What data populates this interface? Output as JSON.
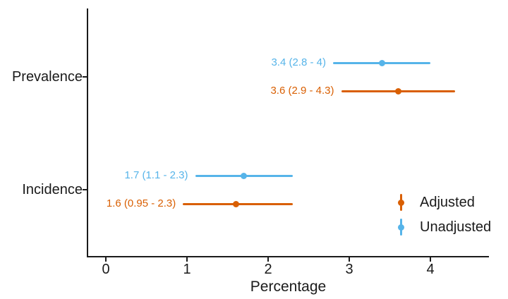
{
  "chart_data": {
    "type": "pointrange",
    "orientation": "horizontal",
    "title": "",
    "xlabel": "Percentage",
    "ylabel": "",
    "xlim": [
      -0.23,
      4.72
    ],
    "x_ticks": [
      "0",
      "1",
      "2",
      "3",
      "4"
    ],
    "grid": "off",
    "axis_color": "#1a1a1a",
    "categories": [
      "Prevalence",
      "Incidence"
    ],
    "series": [
      {
        "name": "Unadjusted",
        "color": "#56B4E9",
        "points": [
          {
            "category": "Prevalence",
            "estimate": 3.4,
            "ci_low": 2.8,
            "ci_high": 4.0,
            "label": "3.4 (2.8 - 4)"
          },
          {
            "category": "Incidence",
            "estimate": 1.7,
            "ci_low": 1.1,
            "ci_high": 2.3,
            "label": "1.7 (1.1 - 2.3)"
          }
        ]
      },
      {
        "name": "Adjusted",
        "color": "#D95F02",
        "points": [
          {
            "category": "Prevalence",
            "estimate": 3.6,
            "ci_low": 2.9,
            "ci_high": 4.3,
            "label": "3.6 (2.9 - 4.3)"
          },
          {
            "category": "Incidence",
            "estimate": 1.6,
            "ci_low": 0.95,
            "ci_high": 2.3,
            "label": "1.6 (0.95 - 2.3)"
          }
        ]
      }
    ],
    "legend": {
      "position": "inside-bottom-right",
      "entries": [
        {
          "label": "Adjusted",
          "color": "#D95F02"
        },
        {
          "label": "Unadjusted",
          "color": "#56B4E9"
        }
      ]
    }
  }
}
